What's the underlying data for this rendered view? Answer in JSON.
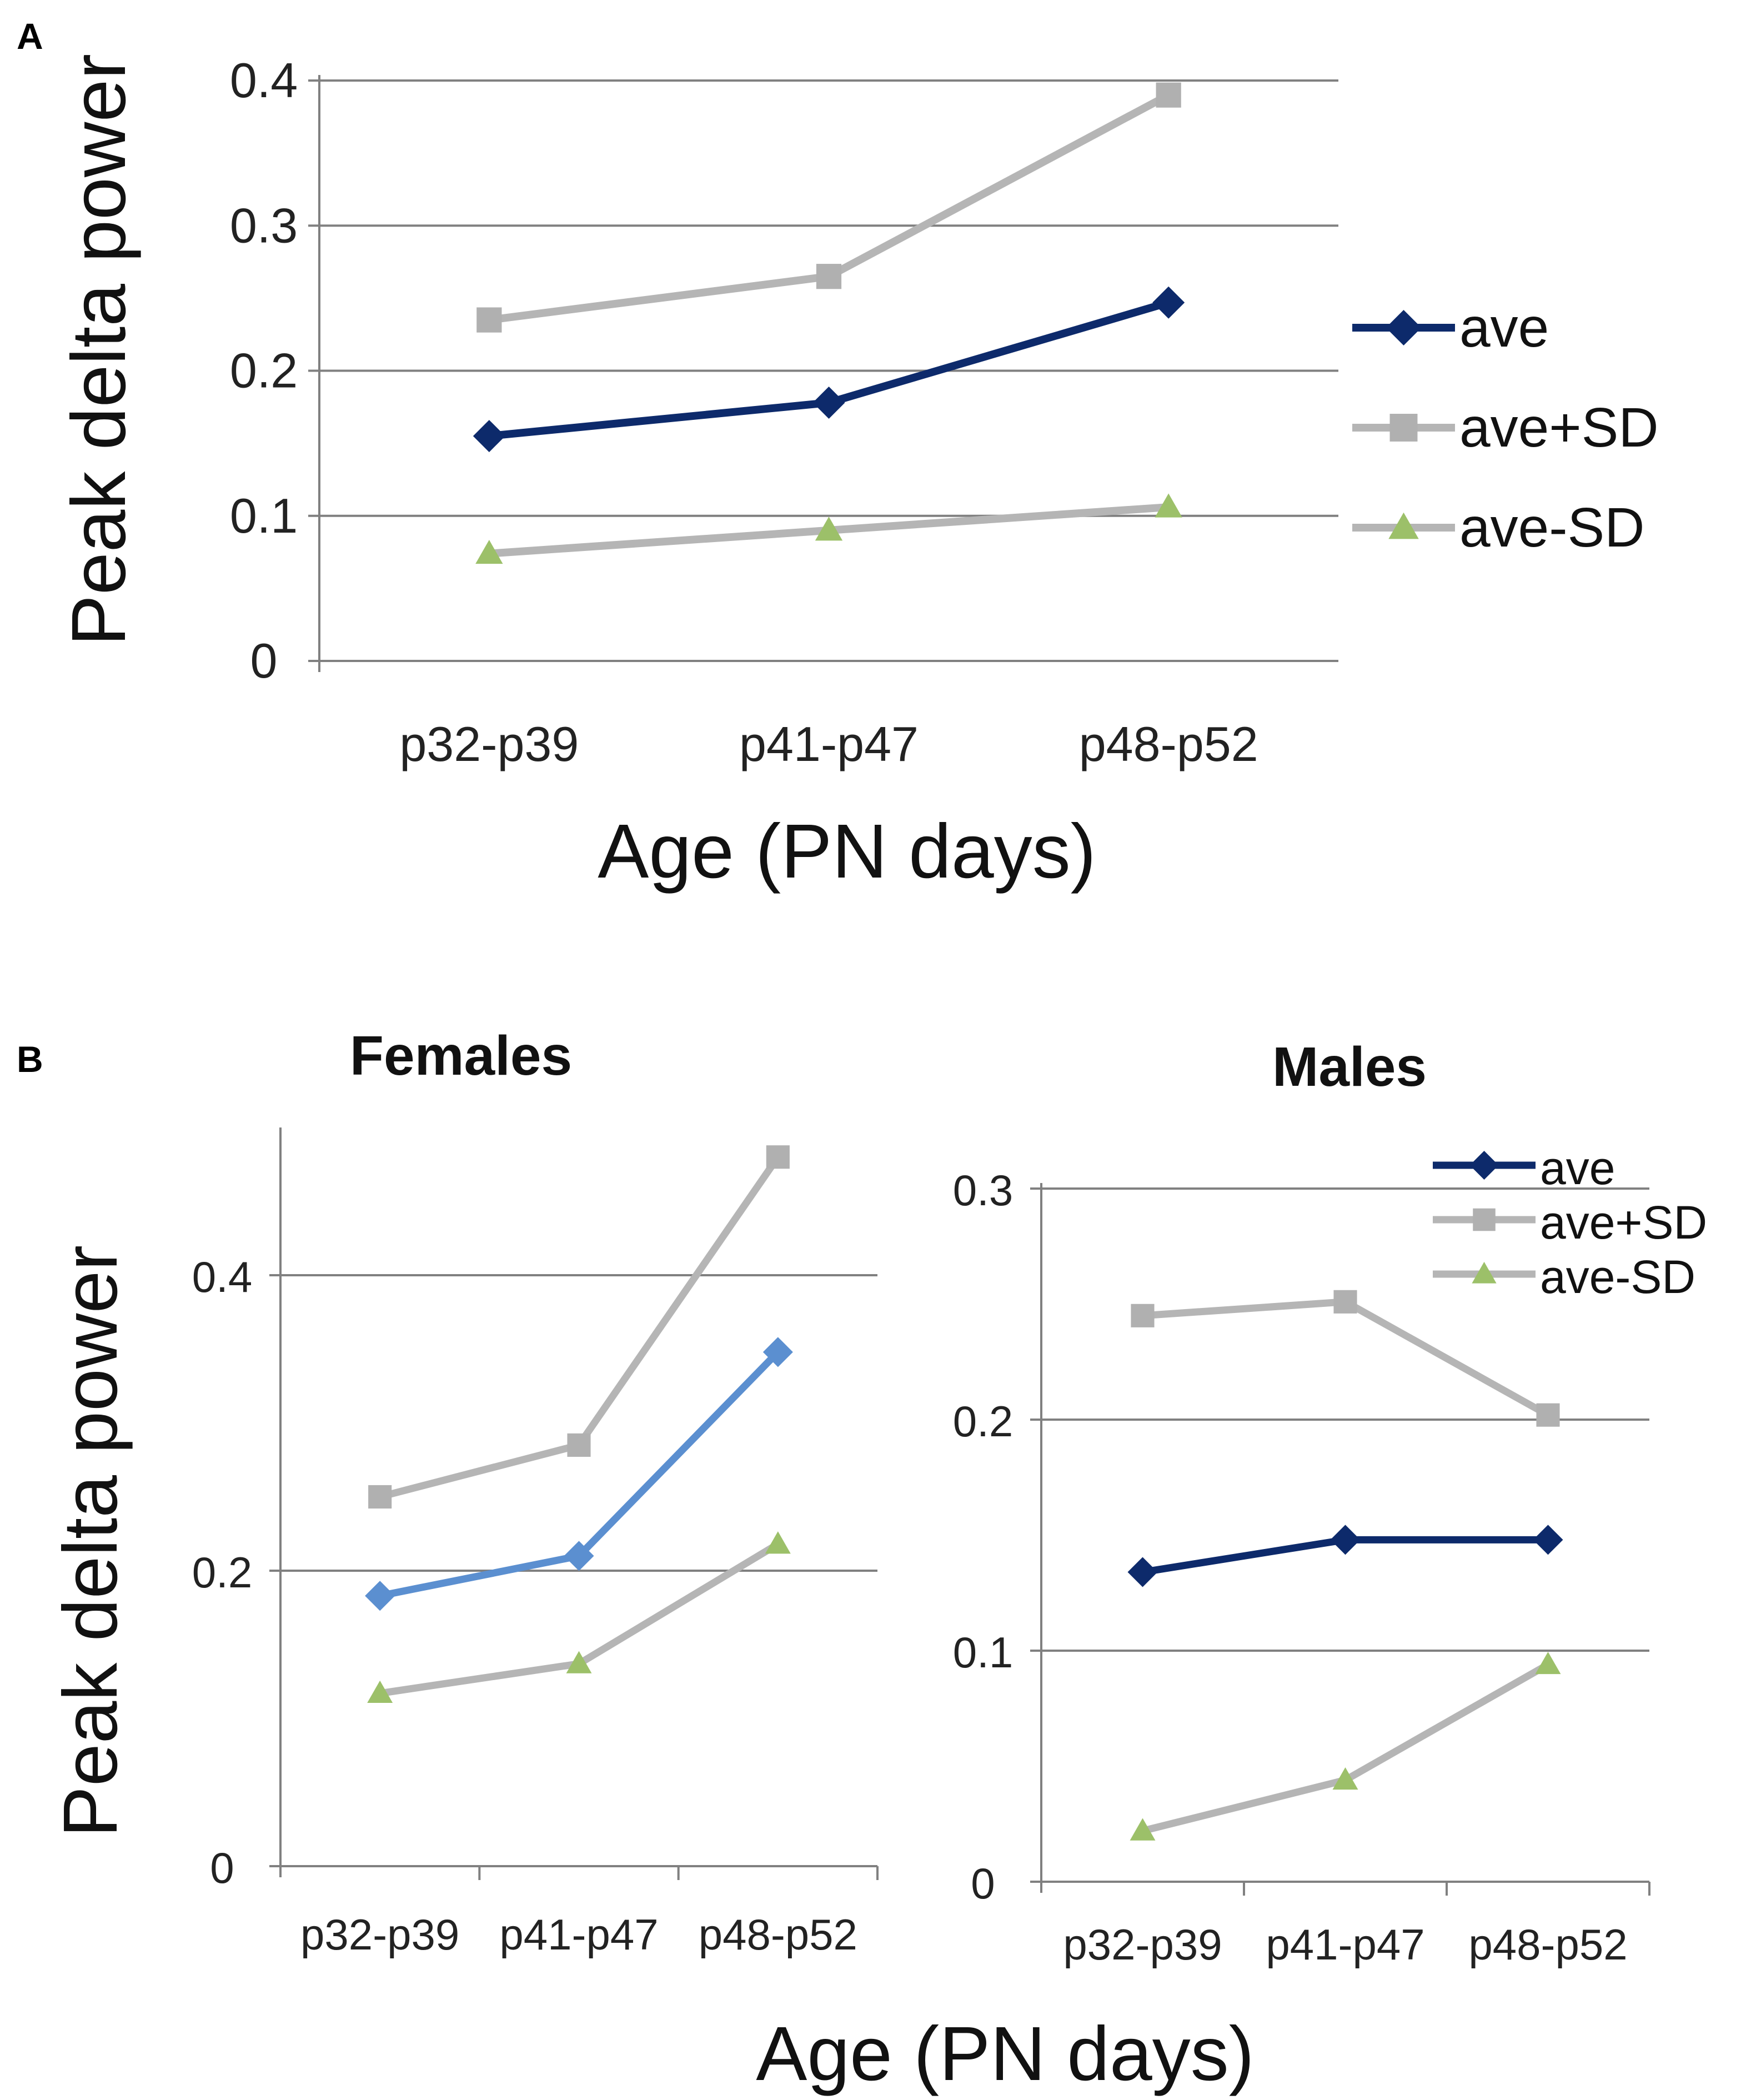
{
  "panel_labels": {
    "a": "A",
    "b": "B"
  },
  "colors": {
    "ave_dark": "#0d2a6b",
    "ave_light": "#5b8fd0",
    "sd_line": "#b5b5b5",
    "sd_plus_marker": "#b0b0b0",
    "sd_minus_marker": "#9cc069",
    "grid": "#808080"
  },
  "shared": {
    "xlabel": "Age (PN days)",
    "ylabel": "Peak delta power"
  },
  "chart_data": [
    {
      "id": "A",
      "type": "line",
      "title": "",
      "xlabel": "Age (PN days)",
      "ylabel": "Peak delta power",
      "categories": [
        "p32-p39",
        "p41-p47",
        "p48-p52"
      ],
      "ylim": [
        0,
        0.4
      ],
      "yticks": [
        0,
        0.1,
        0.2,
        0.3,
        0.4
      ],
      "ytick_labels": [
        "0",
        "0.1",
        "0.2",
        "0.3",
        "0.4"
      ],
      "grid": true,
      "legend_position": "right",
      "series": [
        {
          "name": "ave",
          "values": [
            0.155,
            0.178,
            0.247
          ],
          "marker": "diamond",
          "color": "#0d2a6b"
        },
        {
          "name": "ave+SD",
          "values": [
            0.235,
            0.265,
            0.39
          ],
          "marker": "square",
          "color": "#b5b5b5"
        },
        {
          "name": "ave-SD",
          "values": [
            0.074,
            0.09,
            0.106
          ],
          "marker": "triangle",
          "color": "#b5b5b5"
        }
      ]
    },
    {
      "id": "B-females",
      "type": "line",
      "title": "Females",
      "xlabel": "Age (PN days)",
      "ylabel": "Peak delta power",
      "categories": [
        "p32-p39",
        "p41-p47",
        "p48-p52"
      ],
      "ylim": [
        0,
        0.5
      ],
      "yticks": [
        0,
        0.2,
        0.4
      ],
      "ytick_labels": [
        "0",
        "0.2",
        "0.4"
      ],
      "grid": true,
      "series": [
        {
          "name": "ave",
          "values": [
            0.183,
            0.21,
            0.348
          ],
          "marker": "diamond",
          "color": "#5b8fd0"
        },
        {
          "name": "ave+SD",
          "values": [
            0.25,
            0.285,
            0.48
          ],
          "marker": "square",
          "color": "#b5b5b5"
        },
        {
          "name": "ave-SD",
          "values": [
            0.117,
            0.137,
            0.218
          ],
          "marker": "triangle",
          "color": "#b5b5b5"
        }
      ]
    },
    {
      "id": "B-males",
      "type": "line",
      "title": "Males",
      "xlabel": "Age (PN days)",
      "ylabel": "Peak delta power",
      "categories": [
        "p32-p39",
        "p41-p47",
        "p48-p52"
      ],
      "ylim": [
        0,
        0.3
      ],
      "yticks": [
        0,
        0.1,
        0.2,
        0.3
      ],
      "ytick_labels": [
        "0",
        "0.1",
        "0.2",
        "0.3"
      ],
      "grid": true,
      "legend_position": "top-right",
      "series": [
        {
          "name": "ave",
          "values": [
            0.134,
            0.148,
            0.148
          ],
          "marker": "diamond",
          "color": "#0d2a6b"
        },
        {
          "name": "ave+SD",
          "values": [
            0.245,
            0.251,
            0.202
          ],
          "marker": "square",
          "color": "#b5b5b5"
        },
        {
          "name": "ave-SD",
          "values": [
            0.022,
            0.044,
            0.094
          ],
          "marker": "triangle",
          "color": "#b5b5b5"
        }
      ]
    }
  ]
}
